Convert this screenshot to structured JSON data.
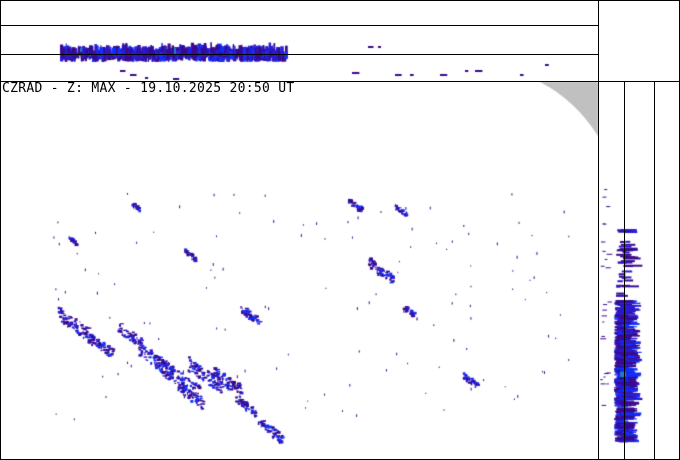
{
  "title": "CZRAD - Z: MAX - 19.10.2025 20:50 UT",
  "colors": {
    "echo_low": "#3a0a8c",
    "echo_mid": "#2a1ad0",
    "echo_high": "#1030ff",
    "echo_peak": "#1a80c0",
    "out_of_range": "#c0c0c0",
    "frame": "#000000"
  }
}
